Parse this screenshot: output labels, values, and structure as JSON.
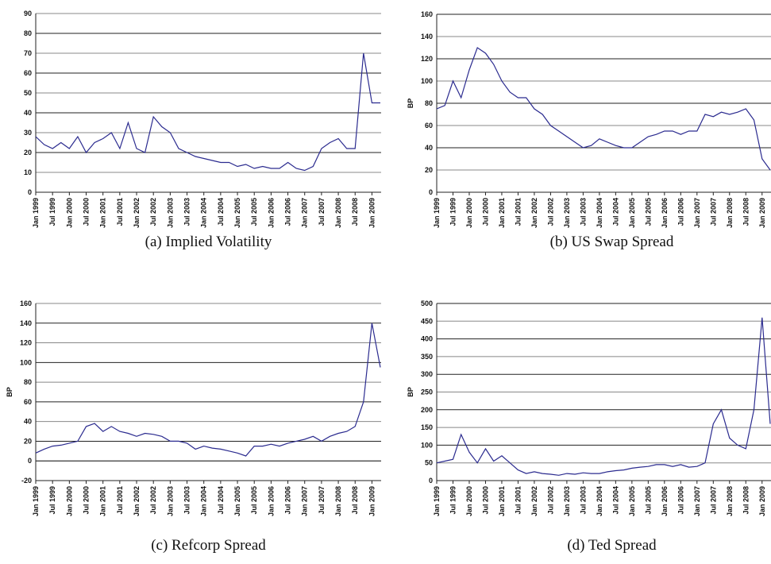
{
  "chart_data": [
    {
      "type": "line",
      "caption": "(a) Implied Volatility",
      "x": [
        "Jan 1999",
        null,
        "Jul 1999",
        null,
        "Jan 2000",
        null,
        "Jul 2000",
        null,
        "Jan 2001",
        null,
        "Jul 2001",
        null,
        "Jan 2002",
        null,
        "Jul 2002",
        null,
        "Jan 2003",
        null,
        "Jul 2003",
        null,
        "Jan 2004",
        null,
        "Jul 2004",
        null,
        "Jan 2005",
        null,
        "Jul 2005",
        null,
        "Jan 2006",
        null,
        "Jul 2006",
        null,
        "Jan 2007",
        null,
        "Jul 2007",
        null,
        "Jan 2008",
        null,
        "Jul 2008",
        null,
        "Jan 2009",
        null
      ],
      "color": "#2b2b8f",
      "values": [
        28,
        24,
        22,
        25,
        22,
        28,
        20,
        25,
        27,
        30,
        22,
        35,
        22,
        20,
        38,
        33,
        30,
        22,
        20,
        18,
        17,
        16,
        15,
        15,
        13,
        14,
        12,
        13,
        12,
        12,
        15,
        12,
        11,
        13,
        22,
        25,
        27,
        22,
        22,
        70,
        45,
        45
      ],
      "ylim": [
        0,
        90
      ],
      "yticks": [
        0,
        10,
        20,
        30,
        40,
        50,
        60,
        70,
        80,
        90
      ],
      "grid": true
    },
    {
      "type": "line",
      "caption": "(b) US Swap Spread",
      "y_label": "BP",
      "x": [
        "Jan 1999",
        null,
        "Jul 1999",
        null,
        "Jan 2000",
        null,
        "Jul 2000",
        null,
        "Jan 2001",
        null,
        "Jul 2001",
        null,
        "Jan 2002",
        null,
        "Jul 2002",
        null,
        "Jan 2003",
        null,
        "Jul 2003",
        null,
        "Jan 2004",
        null,
        "Jul 2004",
        null,
        "Jan 2005",
        null,
        "Jul 2005",
        null,
        "Jan 2006",
        null,
        "Jul 2006",
        null,
        "Jan 2007",
        null,
        "Jul 2007",
        null,
        "Jan 2008",
        null,
        "Jul 2008",
        null,
        "Jan 2009",
        null
      ],
      "color": "#2b2b8f",
      "values": [
        75,
        78,
        100,
        85,
        110,
        130,
        125,
        115,
        100,
        90,
        85,
        85,
        75,
        70,
        60,
        55,
        50,
        45,
        40,
        42,
        48,
        45,
        42,
        40,
        40,
        45,
        50,
        52,
        55,
        55,
        52,
        55,
        55,
        70,
        68,
        72,
        70,
        72,
        75,
        65,
        30,
        20
      ],
      "ylim": [
        0,
        160
      ],
      "yticks": [
        0,
        20,
        40,
        60,
        80,
        100,
        120,
        140,
        160
      ],
      "grid": true
    },
    {
      "type": "line",
      "caption": "(c) Refcorp Spread",
      "y_label": "BP",
      "x": [
        "Jan 1999",
        null,
        "Jul 1999",
        null,
        "Jan 2000",
        null,
        "Jul 2000",
        null,
        "Jan 2001",
        null,
        "Jul 2001",
        null,
        "Jan 2002",
        null,
        "Jul 2002",
        null,
        "Jan 2003",
        null,
        "Jul 2003",
        null,
        "Jan 2004",
        null,
        "Jul 2004",
        null,
        "Jan 2005",
        null,
        "Jul 2005",
        null,
        "Jan 2006",
        null,
        "Jul 2006",
        null,
        "Jan 2007",
        null,
        "Jul 2007",
        null,
        "Jan 2008",
        null,
        "Jul 2008",
        null,
        "Jan 2009",
        null
      ],
      "color": "#2b2b8f",
      "values": [
        8,
        12,
        15,
        16,
        18,
        20,
        35,
        38,
        30,
        35,
        30,
        28,
        25,
        28,
        27,
        25,
        20,
        20,
        18,
        12,
        15,
        13,
        12,
        10,
        8,
        5,
        15,
        15,
        17,
        15,
        18,
        20,
        22,
        25,
        20,
        25,
        28,
        30,
        35,
        60,
        140,
        95
      ],
      "ylim": [
        -20,
        160
      ],
      "yticks": [
        -20,
        0,
        20,
        40,
        60,
        80,
        100,
        120,
        140,
        160
      ],
      "grid": true
    },
    {
      "type": "line",
      "caption": "(d) Ted Spread",
      "y_label": "BP",
      "x": [
        "Jan 1999",
        null,
        "Jul 1999",
        null,
        "Jan 2000",
        null,
        "Jul 2000",
        null,
        "Jan 2001",
        null,
        "Jul 2001",
        null,
        "Jan 2002",
        null,
        "Jul 2002",
        null,
        "Jan 2003",
        null,
        "Jul 2003",
        null,
        "Jan 2004",
        null,
        "Jul 2004",
        null,
        "Jan 2005",
        null,
        "Jul 2005",
        null,
        "Jan 2006",
        null,
        "Jul 2006",
        null,
        "Jan 2007",
        null,
        "Jul 2007",
        null,
        "Jan 2008",
        null,
        "Jul 2008",
        null,
        "Jan 2009",
        null
      ],
      "color": "#2b2b8f",
      "values": [
        50,
        55,
        60,
        130,
        80,
        50,
        90,
        55,
        70,
        50,
        30,
        20,
        25,
        20,
        18,
        15,
        20,
        18,
        22,
        20,
        20,
        25,
        28,
        30,
        35,
        38,
        40,
        45,
        45,
        40,
        45,
        38,
        40,
        50,
        160,
        200,
        120,
        100,
        90,
        200,
        460,
        160
      ],
      "ylim": [
        0,
        500
      ],
      "yticks": [
        0,
        50,
        100,
        150,
        200,
        250,
        300,
        350,
        400,
        450,
        500
      ],
      "grid": true
    }
  ]
}
